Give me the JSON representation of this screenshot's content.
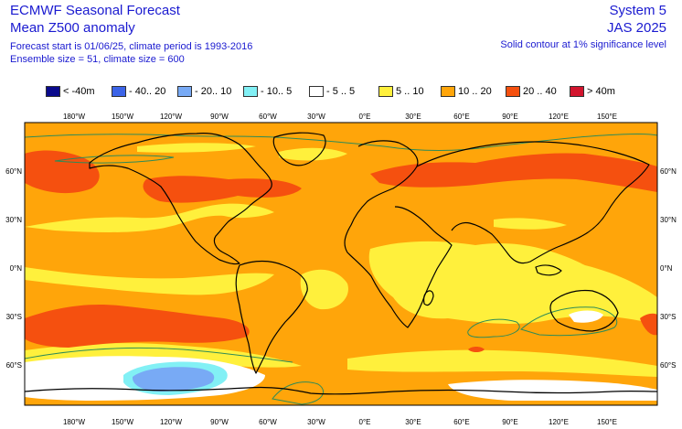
{
  "header": {
    "title": "ECMWF Seasonal Forecast",
    "variable": "Mean Z500 anomaly",
    "forecast_info": "Forecast start is 01/06/25, climate period is 1993-2016",
    "ensemble_info": "Ensemble size = 51, climate size = 600",
    "system": "System 5",
    "period": "JAS 2025",
    "contour_note": "Solid contour at 1% significance level"
  },
  "legend": [
    {
      "label": "< -40m",
      "color": "#0a0a8c"
    },
    {
      "label": "- 40.. 20",
      "color": "#3c64e8"
    },
    {
      "label": "- 20.. 10",
      "color": "#78aaf5"
    },
    {
      "label": "- 10.. 5",
      "color": "#82f0f5"
    },
    {
      "label": "- 5 .. 5",
      "color": "#ffffff"
    },
    {
      "label": "5 .. 10",
      "color": "#fff03c"
    },
    {
      "label": "10 .. 20",
      "color": "#ffa50a"
    },
    {
      "label": "20 .. 40",
      "color": "#f5500f"
    },
    {
      "label": "> 40m",
      "color": "#d2142d"
    }
  ],
  "axes": {
    "lon_labels": [
      "180°W",
      "150°W",
      "120°W",
      "90°W",
      "60°W",
      "30°W",
      "0°E",
      "30°E",
      "60°E",
      "90°E",
      "120°E",
      "150°E"
    ],
    "lat_labels": [
      "60°N",
      "30°N",
      "0°N",
      "30°S",
      "60°S"
    ]
  },
  "colors": {
    "coast": "#000000",
    "contour": "#2e8b57"
  }
}
